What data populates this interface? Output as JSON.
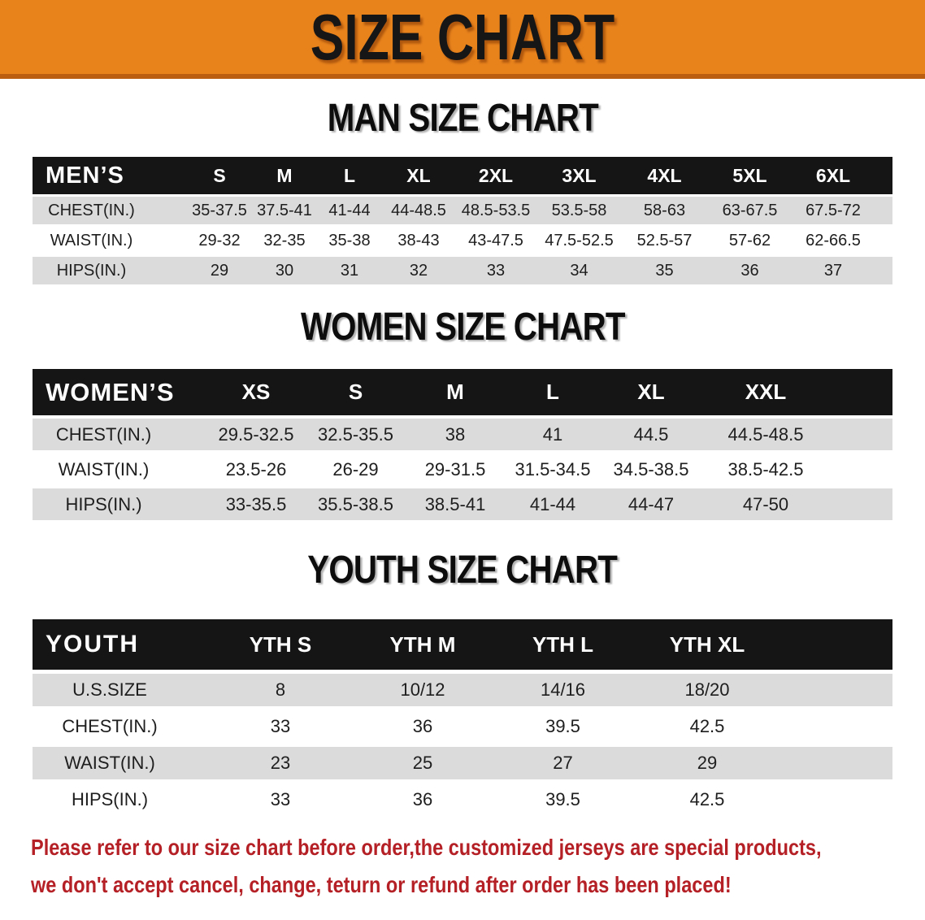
{
  "banner": {
    "title": "SIZE CHART"
  },
  "colors": {
    "banner_bg": "#E8831C",
    "banner_strip": "#BC5E10",
    "header_bg": "#151515",
    "row_alt": "#DBDBDB",
    "disclaimer_red": "#B42025"
  },
  "chart_data": [
    {
      "type": "table",
      "title": "MAN SIZE CHART",
      "header_label": "MEN’S",
      "columns": [
        "S",
        "M",
        "L",
        "XL",
        "2XL",
        "3XL",
        "4XL",
        "5XL",
        "6XL"
      ],
      "rows": [
        {
          "label": "CHEST(IN.)",
          "values": [
            "35-37.5",
            "37.5-41",
            "41-44",
            "44-48.5",
            "48.5-53.5",
            "53.5-58",
            "58-63",
            "63-67.5",
            "67.5-72"
          ]
        },
        {
          "label": "WAIST(IN.)",
          "values": [
            "29-32",
            "32-35",
            "35-38",
            "38-43",
            "43-47.5",
            "47.5-52.5",
            "52.5-57",
            "57-62",
            "62-66.5"
          ]
        },
        {
          "label": "HIPS(IN.)",
          "values": [
            "29",
            "30",
            "31",
            "32",
            "33",
            "34",
            "35",
            "36",
            "37"
          ]
        }
      ]
    },
    {
      "type": "table",
      "title": "WOMEN SIZE CHART",
      "header_label": "WOMEN’S",
      "columns": [
        "XS",
        "S",
        "M",
        "L",
        "XL",
        "XXL"
      ],
      "rows": [
        {
          "label": "CHEST(IN.)",
          "values": [
            "29.5-32.5",
            "32.5-35.5",
            "38",
            "41",
            "44.5",
            "44.5-48.5"
          ]
        },
        {
          "label": "WAIST(IN.)",
          "values": [
            "23.5-26",
            "26-29",
            "29-31.5",
            "31.5-34.5",
            "34.5-38.5",
            "38.5-42.5"
          ]
        },
        {
          "label": "HIPS(IN.)",
          "values": [
            "33-35.5",
            "35.5-38.5",
            "38.5-41",
            "41-44",
            "44-47",
            "47-50"
          ]
        }
      ]
    },
    {
      "type": "table",
      "title": "YOUTH SIZE CHART",
      "header_label": "YOUTH",
      "columns": [
        "YTH S",
        "YTH M",
        "YTH L",
        "YTH XL"
      ],
      "rows": [
        {
          "label": "U.S.SIZE",
          "values": [
            "8",
            "10/12",
            "14/16",
            "18/20"
          ]
        },
        {
          "label": "CHEST(IN.)",
          "values": [
            "33",
            "36",
            "39.5",
            "42.5"
          ]
        },
        {
          "label": "WAIST(IN.)",
          "values": [
            "23",
            "25",
            "27",
            "29"
          ]
        },
        {
          "label": "HIPS(IN.)",
          "values": [
            "33",
            "36",
            "39.5",
            "42.5"
          ]
        }
      ]
    }
  ],
  "disclaimer": {
    "line1": "Please refer to our size chart before order,the customized jerseys are special products,",
    "line2": "we don't accept cancel, change, teturn or refund after order has been placed!"
  }
}
